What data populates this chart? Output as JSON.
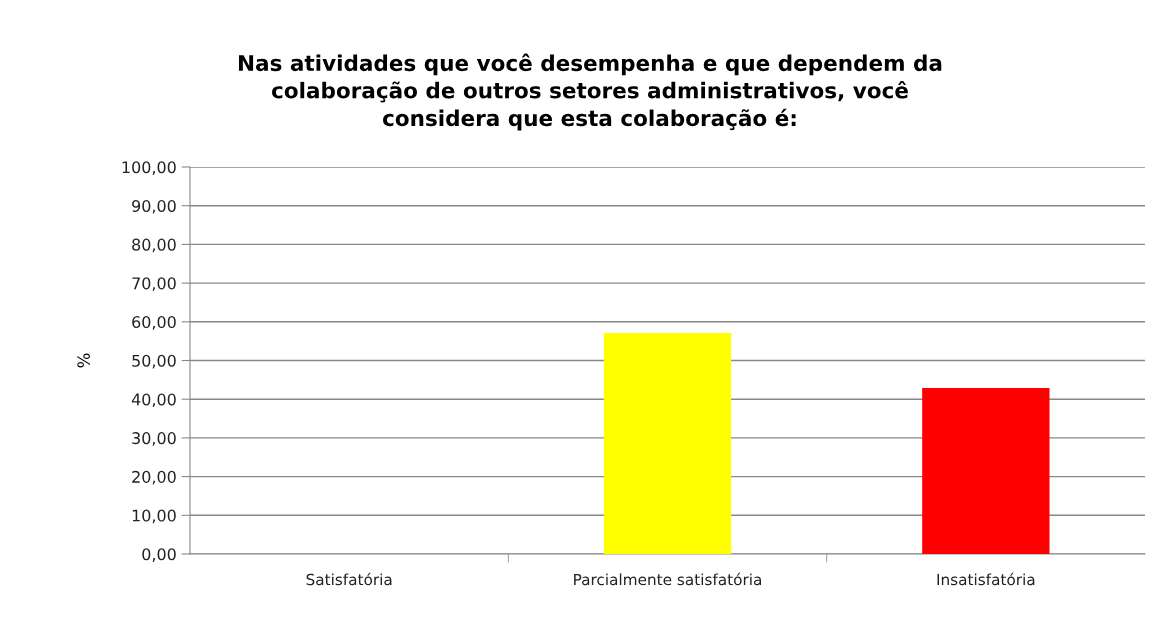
{
  "chart_data": {
    "type": "bar",
    "title": "Nas atividades que você desempenha e que dependem da\ncolaboração de outros setores administrativos, você\nconsidera que esta colaboração é:",
    "ylabel": "%",
    "categories": [
      "Satisfatória",
      "Parcialmente satisfatória",
      "Insatisfatória"
    ],
    "values": [
      0,
      57.1,
      42.9
    ],
    "colors": [
      null,
      "#ffff00",
      "#ff0000"
    ],
    "ylim": [
      0,
      100
    ],
    "yticks": [
      {
        "value": 0,
        "label": "0,00"
      },
      {
        "value": 10,
        "label": "10,00"
      },
      {
        "value": 20,
        "label": "20,00"
      },
      {
        "value": 30,
        "label": "30,00"
      },
      {
        "value": 40,
        "label": "40,00"
      },
      {
        "value": 50,
        "label": "50,00"
      },
      {
        "value": 60,
        "label": "60,00"
      },
      {
        "value": 70,
        "label": "70,00"
      },
      {
        "value": 80,
        "label": "80,00"
      },
      {
        "value": 90,
        "label": "90,00"
      },
      {
        "value": 100,
        "label": "100,00"
      }
    ],
    "grid": "y"
  }
}
